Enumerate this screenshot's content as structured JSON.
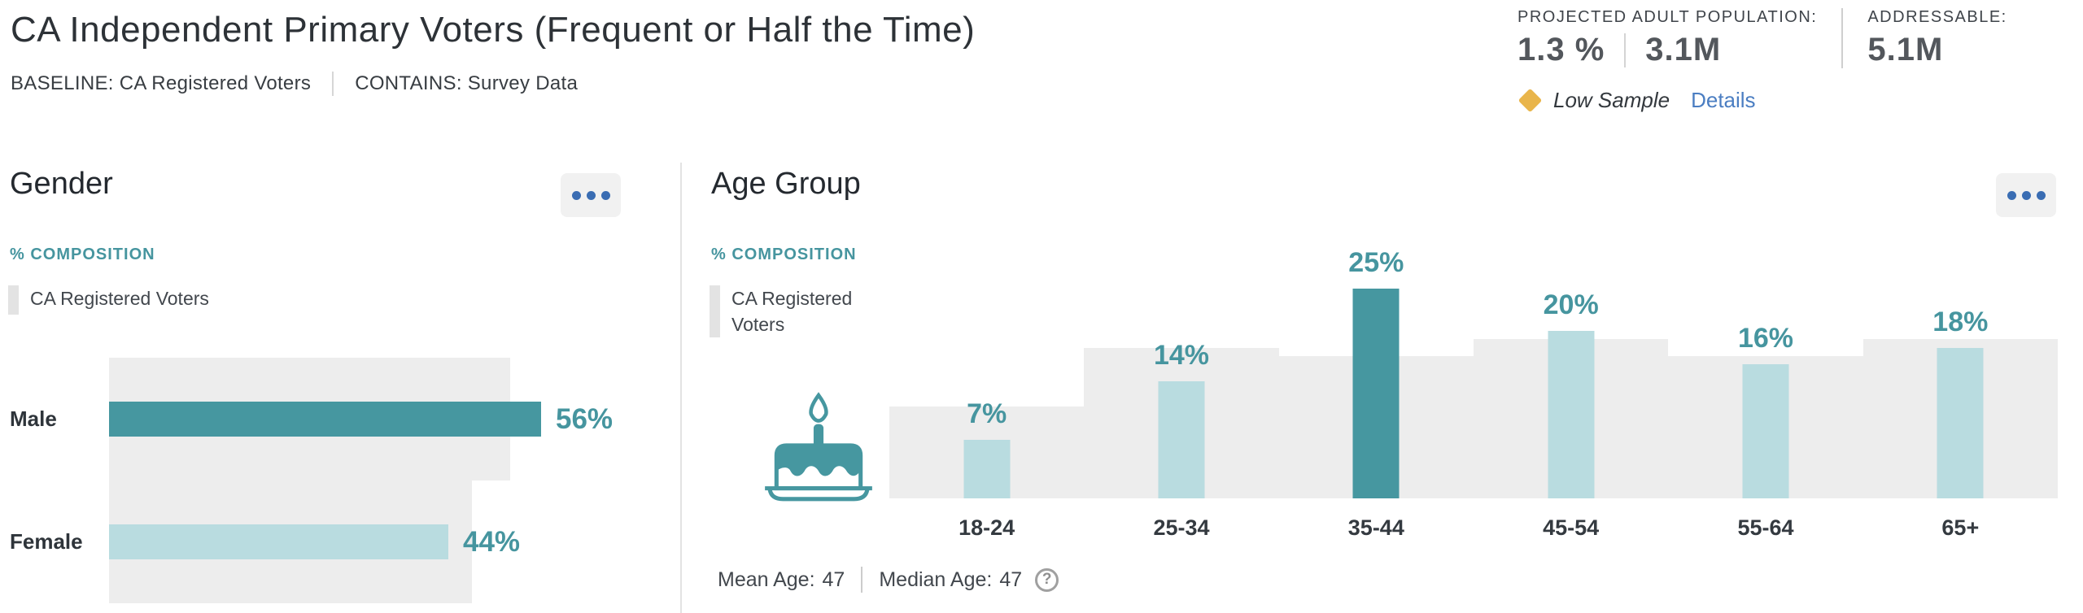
{
  "header": {
    "title": "CA Independent Primary Voters (Frequent or Half the Time)",
    "baseline": "BASELINE: CA Registered Voters",
    "contains": "CONTAINS: Survey Data"
  },
  "stats": {
    "projected_label": "PROJECTED ADULT POPULATION:",
    "projected_percent": "1.3 %",
    "projected_count": "3.1M",
    "addressable_label": "ADDRESSABLE:",
    "addressable_count": "5.1M",
    "low_sample": "Low Sample",
    "details": "Details",
    "warning_icon": "low-sample-diamond-icon"
  },
  "gender_panel": {
    "title": "Gender",
    "metric_label": "% COMPOSITION",
    "legend": "CA Registered Voters",
    "menu_icon": "ellipsis-icon"
  },
  "age_panel": {
    "title": "Age Group",
    "metric_label": "% COMPOSITION",
    "legend": "CA Registered Voters",
    "icon": "birthday-cake-icon",
    "mean_label": "Mean Age:",
    "mean_value": "47",
    "median_label": "Median Age:",
    "median_value": "47",
    "help_icon": "question-circle-icon",
    "menu_icon": "ellipsis-icon"
  },
  "chart_data": [
    {
      "type": "bar",
      "orientation": "horizontal",
      "title": "Gender",
      "metric": "% COMPOSITION",
      "categories": [
        "Male",
        "Female"
      ],
      "series": [
        {
          "name": "CA Independent Primary Voters (Frequent or Half the Time)",
          "values": [
            56,
            44
          ],
          "labels": [
            "56%",
            "44%"
          ]
        },
        {
          "name": "CA Registered Voters",
          "values": [
            52,
            47
          ],
          "note": "baseline background bands, unlabeled - values estimated from pixels"
        }
      ],
      "highlight_index": 0,
      "value_axis_unit": "%",
      "grid": false,
      "legend_position": "top-left"
    },
    {
      "type": "bar",
      "orientation": "vertical",
      "title": "Age Group",
      "metric": "% COMPOSITION",
      "categories": [
        "18-24",
        "25-34",
        "35-44",
        "45-54",
        "55-64",
        "65+"
      ],
      "series": [
        {
          "name": "CA Independent Primary Voters (Frequent or Half the Time)",
          "values": [
            7,
            14,
            25,
            20,
            16,
            18
          ],
          "labels": [
            "7%",
            "14%",
            "25%",
            "20%",
            "16%",
            "18%"
          ]
        },
        {
          "name": "CA Registered Voters",
          "values": [
            11,
            18,
            17,
            19,
            17,
            19
          ],
          "note": "baseline background bands, unlabeled - values estimated from pixels"
        }
      ],
      "highlight_index": 2,
      "mean_age": 47,
      "median_age": 47,
      "value_axis_unit": "%",
      "grid": false,
      "legend_position": "top-left"
    }
  ],
  "colors": {
    "teal_dark": "#4697a0",
    "teal_light": "#b9dce0",
    "teal_text": "#46959f",
    "baseline_band_gray": "#ededed",
    "menu_dot_blue": "#3a6db3",
    "link_blue": "#4b7ec2",
    "warning_gold": "#e9b54b",
    "title_text": "#2d3237",
    "body_text": "#383d42",
    "stat_value_text": "#53575c"
  }
}
